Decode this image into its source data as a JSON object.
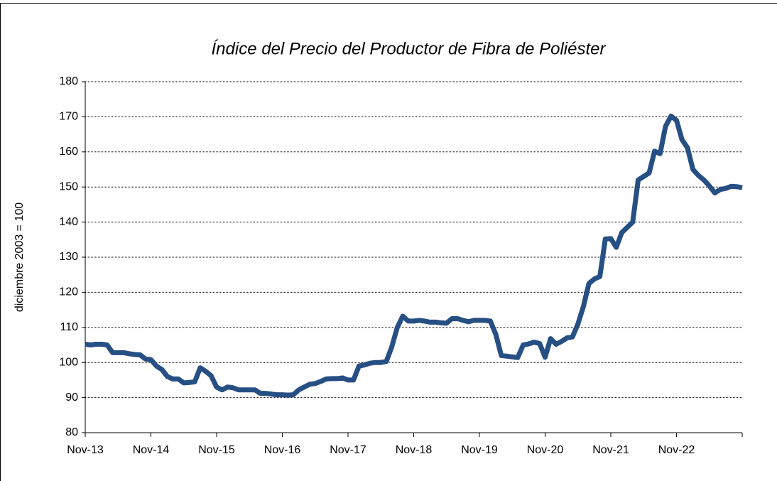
{
  "chart_data": {
    "type": "line",
    "title": "Índice del Precio del Productor de Fibra  de Poliéster",
    "ylabel": "diciembre 2003 = 100",
    "categories": [
      "Nov-13",
      null,
      null,
      null,
      null,
      null,
      null,
      null,
      null,
      null,
      null,
      null,
      "Nov-14",
      null,
      null,
      null,
      null,
      null,
      null,
      null,
      null,
      null,
      null,
      null,
      "Nov-15",
      null,
      null,
      null,
      null,
      null,
      null,
      null,
      null,
      null,
      null,
      null,
      "Nov-16",
      null,
      null,
      null,
      null,
      null,
      null,
      null,
      null,
      null,
      null,
      null,
      "Nov-17",
      null,
      null,
      null,
      null,
      null,
      null,
      null,
      null,
      null,
      null,
      null,
      "Nov-18",
      null,
      null,
      null,
      null,
      null,
      null,
      null,
      null,
      null,
      null,
      null,
      "Nov-19",
      null,
      null,
      null,
      null,
      null,
      null,
      null,
      null,
      null,
      null,
      null,
      "Nov-20",
      null,
      null,
      null,
      null,
      null,
      null,
      null,
      null,
      null,
      null,
      null,
      "Nov-21",
      null,
      null,
      null,
      null,
      null,
      null,
      null,
      null,
      null,
      null,
      null,
      "Nov-22",
      null,
      null,
      null,
      null,
      null,
      null,
      null,
      null,
      null,
      null,
      null,
      null
    ],
    "series": [
      {
        "name": "Índice",
        "color": "#264f84",
        "values": [
          105.2,
          105,
          105.2,
          105.2,
          105,
          102.8,
          102.8,
          102.8,
          102.5,
          102.3,
          102.2,
          101,
          100.8,
          99,
          98,
          96,
          95.3,
          95.3,
          94.2,
          94.3,
          94.5,
          98.5,
          97.5,
          96.2,
          93,
          92.2,
          93,
          92.8,
          92.2,
          92.2,
          92.2,
          92.2,
          91.2,
          91.2,
          91,
          90.8,
          90.8,
          90.7,
          90.8,
          92.2,
          93,
          93.8,
          94,
          94.6,
          95.3,
          95.4,
          95.4,
          95.6,
          95,
          95,
          99,
          99.3,
          99.8,
          100,
          100,
          100.3,
          104.5,
          110,
          113.2,
          111.8,
          111.8,
          112,
          111.8,
          111.5,
          111.5,
          111.3,
          111.2,
          112.5,
          112.5,
          112,
          111.6,
          112,
          112,
          112,
          111.8,
          108,
          102,
          101.8,
          101.6,
          101.4,
          105,
          105.3,
          105.8,
          105.4,
          101.5,
          106.8,
          105.2,
          106,
          107,
          107.3,
          111,
          116,
          122.5,
          123.8,
          124.5,
          135.2,
          135.3,
          132.8,
          137,
          138.5,
          140,
          152,
          153,
          154,
          160.2,
          159.5,
          167.3,
          170.2,
          169,
          163.5,
          161.2,
          155,
          153.3,
          152,
          150.3,
          148.3,
          149.3,
          149.6,
          150.2,
          150.1,
          149.8
        ]
      }
    ],
    "ylim": [
      80,
      180
    ],
    "yticks": [
      80,
      90,
      100,
      110,
      120,
      130,
      140,
      150,
      160,
      170,
      180
    ],
    "grid": true
  }
}
